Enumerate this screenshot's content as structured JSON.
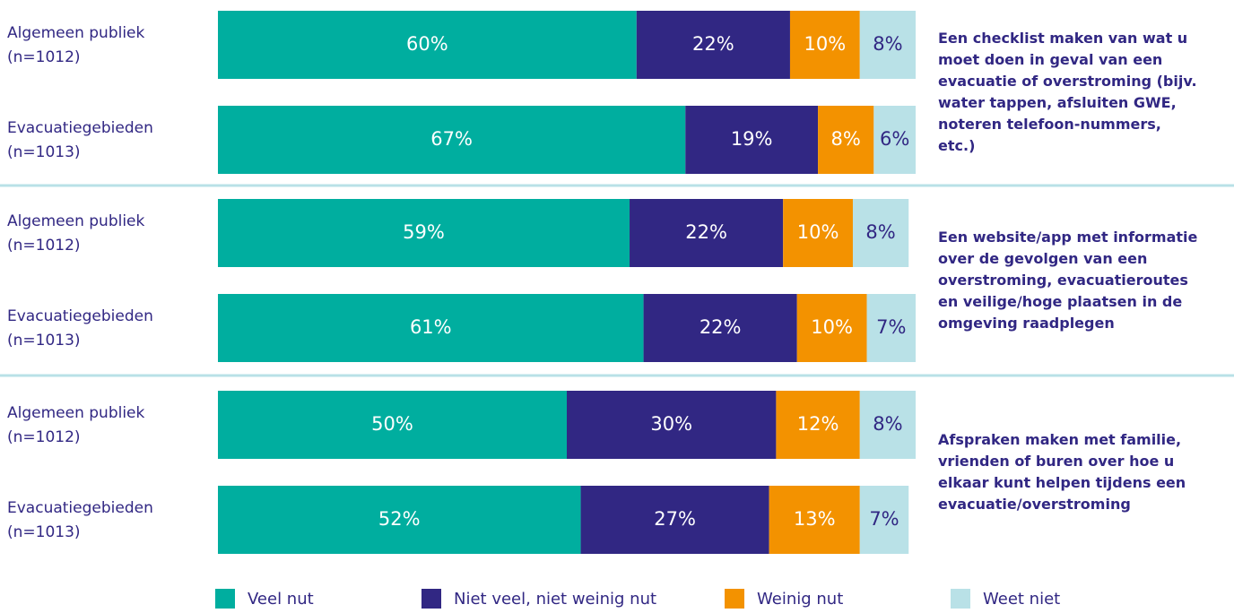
{
  "chart_data": {
    "type": "bar",
    "orientation": "horizontal",
    "stacked": true,
    "categories": [
      [
        "Algemeen publiek",
        "(n=1012)"
      ],
      [
        "Evacuatiegebieden",
        "(n=1013)"
      ],
      [
        "Algemeen publiek",
        "(n=1012)"
      ],
      [
        "Evacuatiegebieden",
        "(n=1013)"
      ],
      [
        "Algemeen publiek",
        "(n=1012)"
      ],
      [
        "Evacuatiegebieden",
        "(n=1013)"
      ]
    ],
    "group_labels": [
      "Een checklist maken van wat u moet doen in geval van een evacuatie of overstroming (bijv. water tappen, afsluiten GWE, noteren telefoon-nummers, etc.)",
      "Een website/app met informatie over de gevolgen van een overstroming, evacuatieroutes en veilige/hoge plaatsen in de omgeving raadplegen",
      "Afspraken maken met familie, vrienden of buren over hoe u elkaar kunt helpen tijdens een evacuatie/overstroming"
    ],
    "xlim": [
      0,
      100
    ],
    "series": [
      {
        "name": "Veel nut",
        "color": "#00ae9f",
        "values": [
          60,
          67,
          59,
          61,
          50,
          52
        ],
        "value_labels": [
          "60%",
          "67%",
          "59%",
          "61%",
          "50%",
          "52%"
        ]
      },
      {
        "name": "Niet veel, niet weinig nut",
        "color": "#312783",
        "values": [
          22,
          19,
          22,
          22,
          30,
          27
        ],
        "value_labels": [
          "22%",
          "19%",
          "22%",
          "22%",
          "30%",
          "27%"
        ]
      },
      {
        "name": "Weinig nut",
        "color": "#f39200",
        "values": [
          10,
          8,
          10,
          10,
          12,
          13
        ],
        "value_labels": [
          "10%",
          "8%",
          "10%",
          "10%",
          "12%",
          "13%"
        ]
      },
      {
        "name": "Weet niet",
        "color": "#b9e1e7",
        "values": [
          8,
          6,
          8,
          7,
          8,
          7
        ],
        "value_labels": [
          "8%",
          "6%",
          "8%",
          "7%",
          "8%",
          "7%"
        ]
      }
    ],
    "legend": "bottom"
  }
}
